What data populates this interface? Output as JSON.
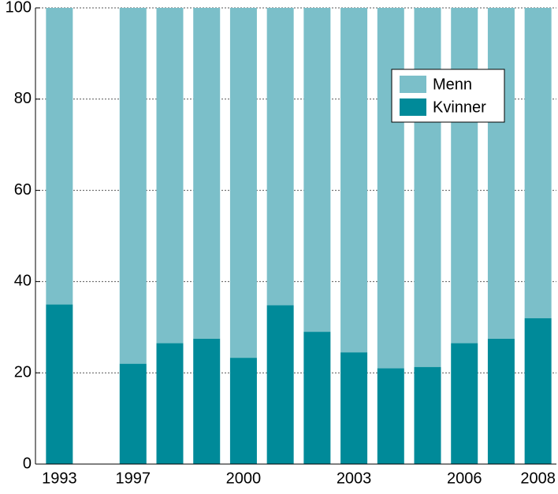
{
  "chart_data": {
    "type": "stacked_bar",
    "categories": [
      "1993",
      null,
      "1997",
      null,
      null,
      "2000",
      null,
      null,
      "2003",
      null,
      null,
      "2006",
      null,
      "2008"
    ],
    "series": [
      {
        "name": "Kvinner",
        "color": "#008a99",
        "values": [
          35,
          null,
          22,
          26.5,
          27.5,
          23.3,
          34.8,
          29,
          24.5,
          21,
          21.3,
          26.5,
          27.5,
          32
        ]
      },
      {
        "name": "Menn",
        "color": "#7bbfc9",
        "values": [
          65,
          null,
          78,
          73.5,
          72.5,
          76.7,
          65.2,
          71,
          75.5,
          79,
          78.7,
          73.5,
          72.5,
          68
        ]
      }
    ],
    "ylim": [
      0,
      100
    ],
    "yticks": [
      0,
      20,
      40,
      60,
      80,
      100
    ],
    "grid": true,
    "legend": "upper right"
  }
}
